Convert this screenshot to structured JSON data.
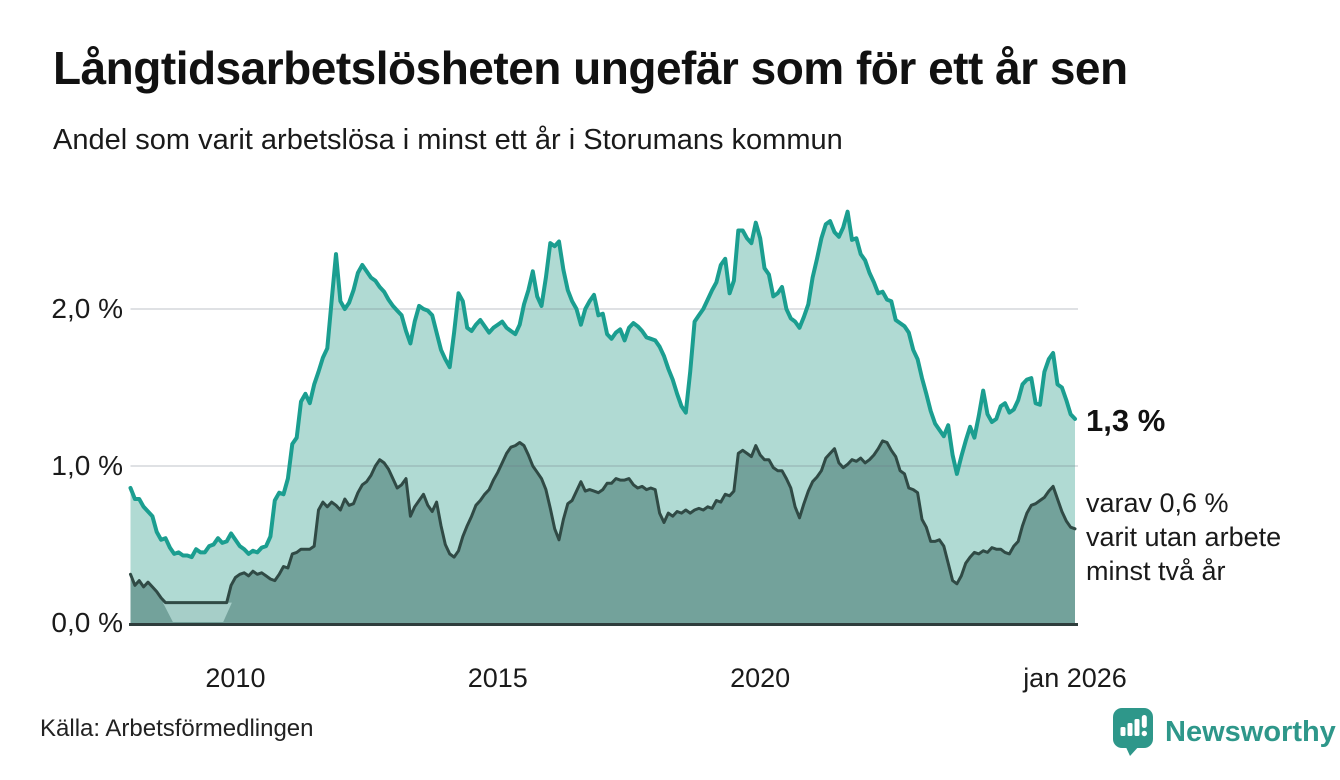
{
  "header": {
    "title": "Långtidsarbetslösheten ungefär som för ett år sen",
    "subtitle": "Andel som varit arbetslösa i minst ett år i Storumans kommun"
  },
  "annotations": {
    "latest_value": "1,3 %",
    "secondary_line1": "varav 0,6 %",
    "secondary_line2": "varit utan arbete",
    "secondary_line3": "minst två år"
  },
  "footer": {
    "source": "Källa: Arbetsförmedlingen",
    "brand": "Newsworthy"
  },
  "colors": {
    "background": "#ffffff",
    "text": "#1a1a1a",
    "axis_line": "#2e3d3c",
    "gridline": "rgba(110,118,130,0.22)",
    "brand_teal": "#2e978a"
  },
  "chart_data": {
    "type": "area",
    "title": "Långtidsarbetslösheten ungefär som för ett år sen",
    "subtitle": "Andel som varit arbetslösa i minst ett år i Storumans kommun",
    "x_start_year": 2008,
    "x_end_year": 2026,
    "frequency": "monthly",
    "ylim": [
      0,
      2.8
    ],
    "grid": "horizontal",
    "y_axis_ticks": [
      {
        "label": "0,0 %",
        "value": 0
      },
      {
        "label": "1,0 %",
        "value": 1
      },
      {
        "label": "2,0 %",
        "value": 2
      }
    ],
    "x_axis_ticks": [
      {
        "label": "2010",
        "year": 2010
      },
      {
        "label": "2015",
        "year": 2015
      },
      {
        "label": "2020",
        "year": 2020
      },
      {
        "label": "jan 2026",
        "year": 2026
      }
    ],
    "latest_values": {
      "min_one_year": 1.3,
      "min_two_years": 0.6
    },
    "series": [
      {
        "name": "Arbetslösa minst ett år",
        "color": "#1b9e90",
        "fill": "#b0dad3",
        "values": [
          0.86,
          0.79,
          0.79,
          0.74,
          0.71,
          0.68,
          0.58,
          0.53,
          0.54,
          0.48,
          0.44,
          0.45,
          0.43,
          0.43,
          0.42,
          0.47,
          0.45,
          0.45,
          0.49,
          0.5,
          0.54,
          0.51,
          0.52,
          0.57,
          0.53,
          0.49,
          0.47,
          0.44,
          0.46,
          0.45,
          0.48,
          0.49,
          0.55,
          0.78,
          0.83,
          0.82,
          0.92,
          1.14,
          1.18,
          1.41,
          1.46,
          1.4,
          1.52,
          1.6,
          1.69,
          1.75,
          2.05,
          2.35,
          2.05,
          2.0,
          2.04,
          2.12,
          2.23,
          2.28,
          2.24,
          2.2,
          2.18,
          2.14,
          2.11,
          2.06,
          2.02,
          1.99,
          1.96,
          1.86,
          1.78,
          1.92,
          2.02,
          2.0,
          1.99,
          1.96,
          1.85,
          1.74,
          1.68,
          1.63,
          1.85,
          2.1,
          2.05,
          1.88,
          1.86,
          1.9,
          1.93,
          1.89,
          1.85,
          1.88,
          1.9,
          1.92,
          1.88,
          1.86,
          1.84,
          1.9,
          2.03,
          2.12,
          2.24,
          2.08,
          2.02,
          2.2,
          2.42,
          2.4,
          2.43,
          2.25,
          2.12,
          2.05,
          2.0,
          1.9,
          2.0,
          2.05,
          2.09,
          1.96,
          1.97,
          1.84,
          1.81,
          1.85,
          1.87,
          1.8,
          1.88,
          1.91,
          1.89,
          1.86,
          1.82,
          1.81,
          1.8,
          1.76,
          1.7,
          1.62,
          1.55,
          1.46,
          1.38,
          1.34,
          1.6,
          1.92,
          1.96,
          2.0,
          2.06,
          2.12,
          2.17,
          2.28,
          2.32,
          2.1,
          2.18,
          2.5,
          2.5,
          2.45,
          2.42,
          2.55,
          2.45,
          2.26,
          2.22,
          2.08,
          2.1,
          2.14,
          2.0,
          1.94,
          1.92,
          1.88,
          1.95,
          2.03,
          2.2,
          2.32,
          2.45,
          2.54,
          2.56,
          2.49,
          2.46,
          2.52,
          2.62,
          2.44,
          2.45,
          2.35,
          2.31,
          2.23,
          2.17,
          2.1,
          2.11,
          2.06,
          2.05,
          1.93,
          1.91,
          1.89,
          1.85,
          1.74,
          1.68,
          1.56,
          1.46,
          1.35,
          1.27,
          1.23,
          1.19,
          1.26,
          1.07,
          0.95,
          1.06,
          1.16,
          1.25,
          1.18,
          1.32,
          1.48,
          1.33,
          1.28,
          1.3,
          1.38,
          1.4,
          1.34,
          1.36,
          1.42,
          1.52,
          1.55,
          1.56,
          1.4,
          1.39,
          1.6,
          1.68,
          1.72,
          1.52,
          1.5,
          1.42,
          1.33,
          1.3
        ]
      },
      {
        "name": "Arbetslösa minst två år",
        "color": "#304a45",
        "fill": "#73a29b",
        "values": [
          0.31,
          0.24,
          0.27,
          0.23,
          0.26,
          0.23,
          0.2,
          0.16,
          0.13,
          0.13,
          0.13,
          0.13,
          0.13,
          0.13,
          0.13,
          0.13,
          0.13,
          0.13,
          0.13,
          0.13,
          0.13,
          0.13,
          0.13,
          0.24,
          0.29,
          0.31,
          0.32,
          0.3,
          0.33,
          0.31,
          0.32,
          0.3,
          0.28,
          0.27,
          0.31,
          0.36,
          0.35,
          0.44,
          0.45,
          0.47,
          0.47,
          0.47,
          0.49,
          0.72,
          0.77,
          0.74,
          0.77,
          0.75,
          0.72,
          0.79,
          0.75,
          0.76,
          0.83,
          0.88,
          0.9,
          0.94,
          1.0,
          1.04,
          1.02,
          0.98,
          0.92,
          0.86,
          0.88,
          0.92,
          0.68,
          0.74,
          0.78,
          0.82,
          0.75,
          0.71,
          0.77,
          0.62,
          0.5,
          0.44,
          0.42,
          0.46,
          0.55,
          0.62,
          0.68,
          0.75,
          0.78,
          0.82,
          0.85,
          0.91,
          0.96,
          1.02,
          1.08,
          1.12,
          1.13,
          1.15,
          1.13,
          1.07,
          1.0,
          0.96,
          0.92,
          0.85,
          0.73,
          0.6,
          0.53,
          0.66,
          0.76,
          0.78,
          0.84,
          0.9,
          0.84,
          0.85,
          0.84,
          0.83,
          0.85,
          0.89,
          0.89,
          0.92,
          0.91,
          0.91,
          0.92,
          0.88,
          0.86,
          0.87,
          0.85,
          0.86,
          0.85,
          0.7,
          0.64,
          0.7,
          0.68,
          0.71,
          0.7,
          0.72,
          0.7,
          0.72,
          0.73,
          0.72,
          0.74,
          0.73,
          0.78,
          0.77,
          0.82,
          0.81,
          0.84,
          1.08,
          1.1,
          1.08,
          1.06,
          1.13,
          1.07,
          1.04,
          1.04,
          0.99,
          0.97,
          0.97,
          0.92,
          0.86,
          0.74,
          0.67,
          0.76,
          0.84,
          0.9,
          0.93,
          0.97,
          1.05,
          1.08,
          1.11,
          1.02,
          0.99,
          1.01,
          1.04,
          1.03,
          1.05,
          1.02,
          1.04,
          1.07,
          1.11,
          1.16,
          1.15,
          1.1,
          1.06,
          0.97,
          0.95,
          0.86,
          0.85,
          0.83,
          0.66,
          0.61,
          0.52,
          0.52,
          0.53,
          0.49,
          0.38,
          0.27,
          0.25,
          0.3,
          0.38,
          0.42,
          0.45,
          0.44,
          0.46,
          0.45,
          0.48,
          0.47,
          0.47,
          0.45,
          0.44,
          0.49,
          0.52,
          0.62,
          0.7,
          0.75,
          0.76,
          0.78,
          0.8,
          0.84,
          0.87,
          0.79,
          0.71,
          0.65,
          0.61,
          0.6
        ]
      }
    ],
    "faded_region": {
      "series": 1,
      "top_start_month": 7.4,
      "top_end_month": 23.2,
      "bottom_start_month": 9.7,
      "bottom_end_month": 21.2,
      "value": 0.13,
      "color": "#a6cec8"
    }
  }
}
